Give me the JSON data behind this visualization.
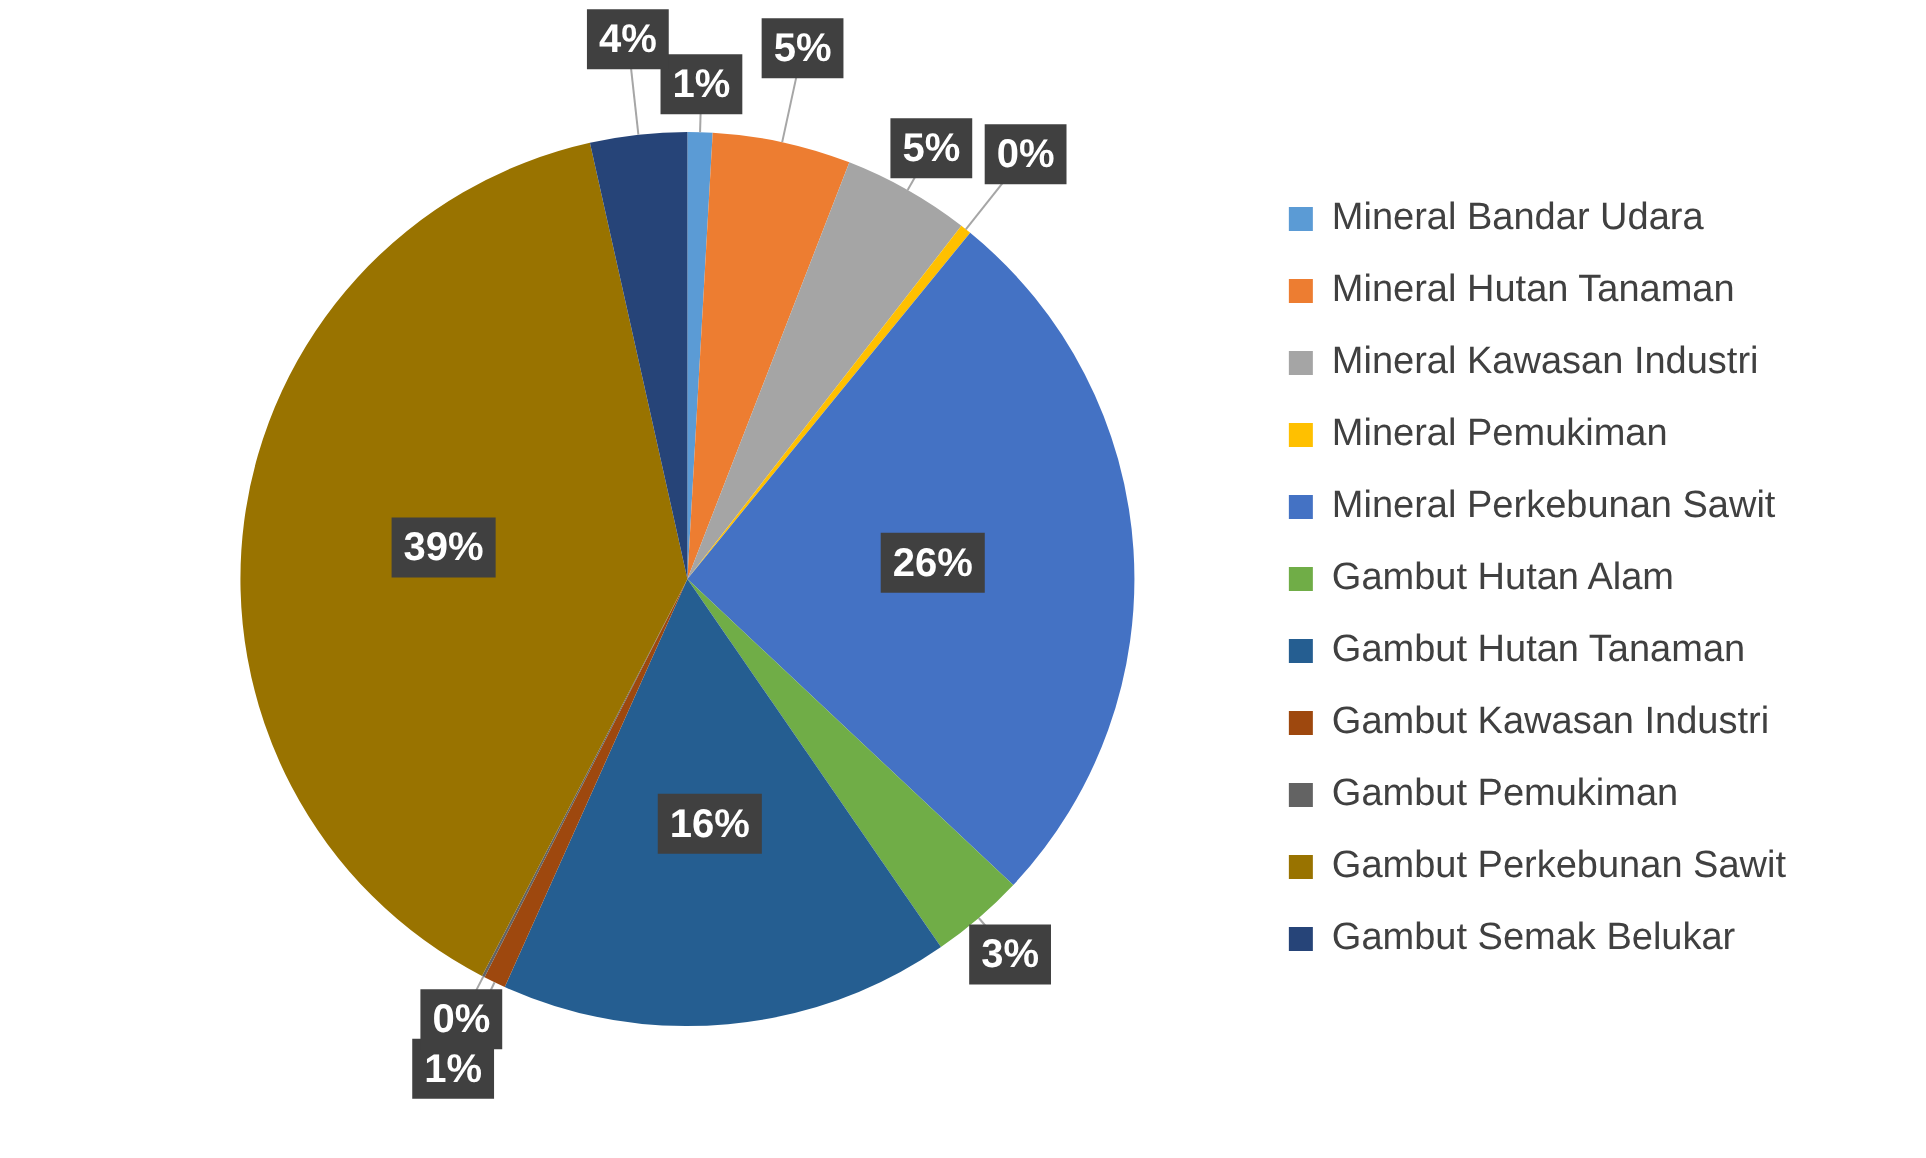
{
  "chart_data": {
    "type": "pie",
    "categories": [
      "Mineral Bandar Udara",
      "Mineral Hutan Tanaman",
      "Mineral Kawasan Industri",
      "Mineral Pemukiman",
      "Mineral Perkebunan Sawit",
      "Gambut Hutan Alam",
      "Gambut Hutan Tanaman",
      "Gambut Kawasan Industri",
      "Gambut Pemukiman",
      "Gambut Perkebunan Sawit",
      "Gambut Semak Belukar"
    ],
    "values": [
      0.9,
      5,
      4.6,
      0.4,
      26.1,
      3.4,
      16.3,
      0.8,
      0.1,
      38.9,
      3.5
    ],
    "value_labels": [
      "1%",
      "5%",
      "5%",
      "0%",
      "26%",
      "3%",
      "16%",
      "1%",
      "0%",
      "39%",
      "4%"
    ],
    "colors": [
      "#5b9bd5",
      "#ed7d31",
      "#a5a5a5",
      "#ffc000",
      "#4472c4",
      "#70ad47",
      "#255e91",
      "#9e480e",
      "#636363",
      "#997300",
      "#264478"
    ],
    "legend": "right"
  }
}
